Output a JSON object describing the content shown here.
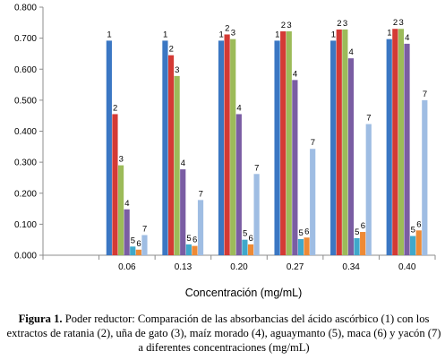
{
  "chart_data": {
    "type": "bar",
    "xlabel": "Concentración (mg/mL)",
    "ylabel": "",
    "ylim": [
      0,
      0.8
    ],
    "yticks": [
      "0.000",
      "0.100",
      "0.200",
      "0.300",
      "0.400",
      "0.500",
      "0.600",
      "0.700",
      "0.800"
    ],
    "categories": [
      "",
      "0.06",
      "0.13",
      "0.20",
      "0.27",
      "0.34",
      "0.40"
    ],
    "grid": false,
    "legend": "none",
    "series": [
      {
        "label": "1",
        "color": "#3b77c3",
        "values": [
          null,
          0.692,
          0.692,
          0.692,
          0.692,
          0.692,
          0.697
        ]
      },
      {
        "label": "2",
        "color": "#d43a35",
        "values": [
          null,
          0.455,
          0.645,
          0.712,
          0.722,
          0.728,
          0.73
        ]
      },
      {
        "label": "3",
        "color": "#9cbb59",
        "values": [
          null,
          0.29,
          0.578,
          0.697,
          0.722,
          0.728,
          0.73
        ]
      },
      {
        "label": "4",
        "color": "#7a5da3",
        "values": [
          null,
          0.148,
          0.277,
          0.455,
          0.565,
          0.635,
          0.682
        ]
      },
      {
        "label": "5",
        "color": "#3fa8cb",
        "values": [
          null,
          0.028,
          0.035,
          0.05,
          0.052,
          0.055,
          0.062
        ]
      },
      {
        "label": "6",
        "color": "#ee8a35",
        "values": [
          null,
          0.018,
          0.03,
          0.035,
          0.057,
          0.075,
          0.08
        ]
      },
      {
        "label": "7",
        "color": "#9fbde3",
        "values": [
          null,
          0.065,
          0.178,
          0.262,
          0.343,
          0.423,
          0.5
        ]
      }
    ]
  },
  "caption": {
    "prefix": "Figura 1.",
    "text": "Poder reductor: Comparación de las absorbancias del ácido ascórbico (1) con los extractos de ratania (2), uña de gato (3), maíz morado (4), aguaymanto (5), maca (6) y yacón (7) a diferentes concentraciones (mg/mL)"
  }
}
